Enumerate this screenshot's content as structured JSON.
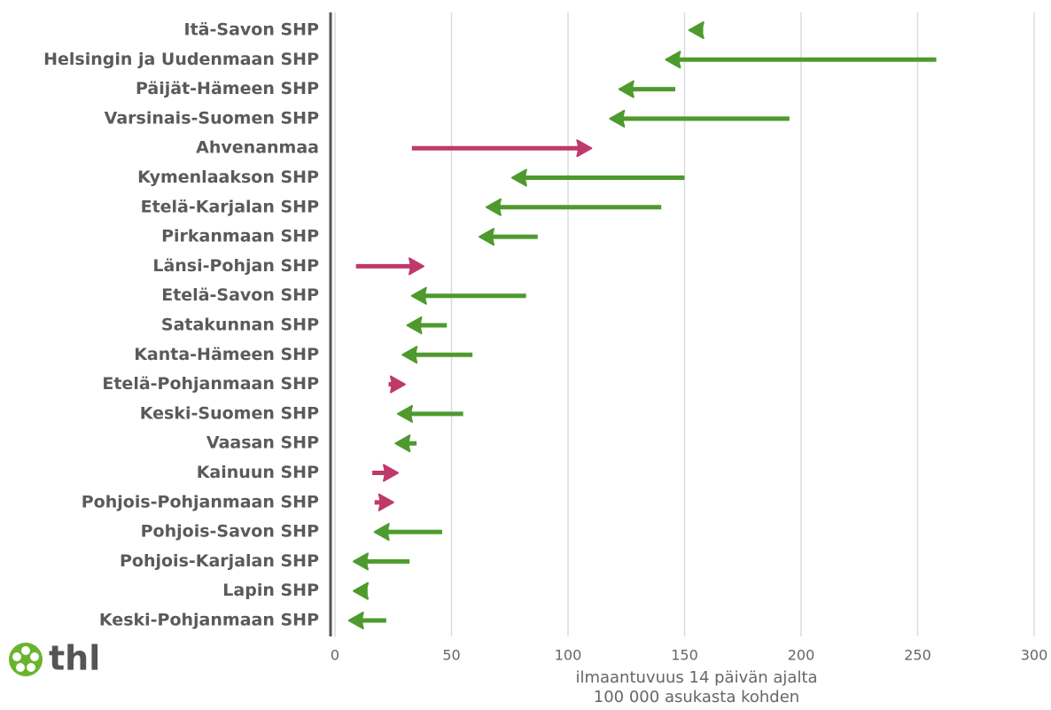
{
  "chart_data": {
    "type": "arrow",
    "categories": [
      "Itä-Savon SHP",
      "Helsingin ja Uudenmaan SHP",
      "Päijät-Hämeen SHP",
      "Varsinais-Suomen SHP",
      "Ahvenanmaa",
      "Kymenlaakson SHP",
      "Etelä-Karjalan SHP",
      "Pirkanmaan SHP",
      "Länsi-Pohjan SHP",
      "Etelä-Savon SHP",
      "Satakunnan SHP",
      "Kanta-Hämeen SHP",
      "Etelä-Pohjanmaan SHP",
      "Keski-Suomen SHP",
      "Vaasan SHP",
      "Kainuun SHP",
      "Pohjois-Pohjanmaan SHP",
      "Pohjois-Savon SHP",
      "Pohjois-Karjalan SHP",
      "Lapin SHP",
      "Keski-Pohjanmaan SHP"
    ],
    "start": [
      158,
      258,
      146,
      195,
      33,
      150,
      140,
      87,
      9,
      82,
      48,
      59,
      23,
      55,
      35,
      16,
      17,
      46,
      32,
      14,
      22
    ],
    "end": [
      152,
      142,
      122,
      118,
      110,
      76,
      65,
      62,
      38,
      33,
      31,
      29,
      30,
      27,
      26,
      27,
      25,
      17,
      8,
      8,
      6
    ],
    "decrease_color": "#4e9a2e",
    "increase_color": "#c0396b",
    "xlim": [
      0,
      300
    ],
    "xticks": [
      0,
      50,
      100,
      150,
      200,
      250,
      300
    ],
    "grid": true,
    "xlabel": [
      "ilmaantuvuus 14 päivän ajalta",
      "100 000 asukasta kohden"
    ],
    "logo": "thl"
  }
}
